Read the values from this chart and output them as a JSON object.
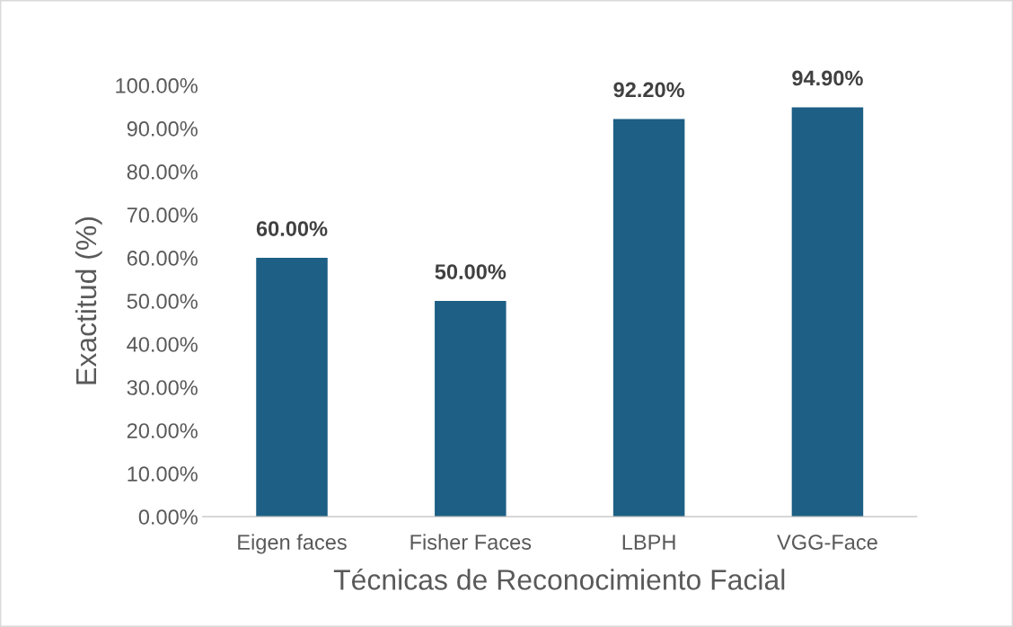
{
  "chart_data": {
    "type": "bar",
    "xlabel": "Técnicas de Reconocimiento Facial",
    "ylabel": "Exactitud (%)",
    "categories": [
      "Eigen faces",
      "Fisher Faces",
      "LBPH",
      "VGG-Face"
    ],
    "values": [
      60,
      50,
      92.2,
      94.9
    ],
    "value_labels": [
      "60.00%",
      "50.00%",
      "92.20%",
      "94.90%"
    ],
    "color": "#1d5f85",
    "ylim": [
      0,
      100
    ],
    "yticks": [
      {
        "value": 0,
        "label": "0.00%"
      },
      {
        "value": 10,
        "label": "10.00%"
      },
      {
        "value": 20,
        "label": "20.00%"
      },
      {
        "value": 30,
        "label": "30.00%"
      },
      {
        "value": 40,
        "label": "40.00%"
      },
      {
        "value": 50,
        "label": "50.00%"
      },
      {
        "value": 60,
        "label": "60.00%"
      },
      {
        "value": 70,
        "label": "70.00%"
      },
      {
        "value": 80,
        "label": "80.00%"
      },
      {
        "value": 90,
        "label": "90.00%"
      },
      {
        "value": 100,
        "label": "100.00%"
      }
    ],
    "grid": false
  }
}
